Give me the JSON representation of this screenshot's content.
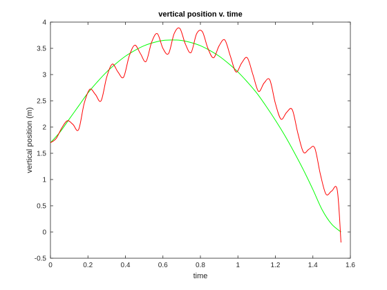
{
  "chart_data": {
    "type": "line",
    "title": "vertical position v. time",
    "xlabel": "time",
    "ylabel": "vertical position (m)",
    "xlim": [
      0,
      1.6
    ],
    "ylim": [
      -0.5,
      4
    ],
    "xticks": [
      "0",
      "0.2",
      "0.4",
      "0.6",
      "0.8",
      "1",
      "1.2",
      "1.4",
      "1.6"
    ],
    "yticks": [
      "-0.5",
      "0",
      "0.5",
      "1",
      "1.5",
      "2",
      "2.5",
      "3",
      "3.5",
      "4"
    ],
    "grid": false,
    "legend": "none",
    "series": [
      {
        "color": "#00ff00",
        "x": [
          0,
          0.05,
          0.1,
          0.15,
          0.2,
          0.25,
          0.3,
          0.35,
          0.4,
          0.45,
          0.5,
          0.55,
          0.6,
          0.65,
          0.7,
          0.75,
          0.8,
          0.85,
          0.9,
          0.95,
          1.0,
          1.05,
          1.1,
          1.15,
          1.2,
          1.25,
          1.3,
          1.35,
          1.4,
          1.45,
          1.5,
          1.55
        ],
        "y": [
          1.7,
          1.9,
          2.15,
          2.4,
          2.65,
          2.86,
          3.05,
          3.21,
          3.35,
          3.46,
          3.55,
          3.61,
          3.65,
          3.66,
          3.65,
          3.61,
          3.55,
          3.46,
          3.35,
          3.21,
          3.05,
          2.86,
          2.65,
          2.4,
          2.13,
          1.84,
          1.52,
          1.18,
          0.81,
          0.42,
          0.15,
          0.0
        ]
      },
      {
        "color": "#ff0000",
        "x": [
          0,
          0.03,
          0.06,
          0.09,
          0.12,
          0.15,
          0.18,
          0.21,
          0.24,
          0.27,
          0.3,
          0.33,
          0.36,
          0.39,
          0.42,
          0.45,
          0.48,
          0.51,
          0.54,
          0.57,
          0.6,
          0.63,
          0.66,
          0.69,
          0.72,
          0.75,
          0.78,
          0.81,
          0.84,
          0.87,
          0.9,
          0.93,
          0.96,
          0.99,
          1.02,
          1.05,
          1.08,
          1.11,
          1.14,
          1.17,
          1.2,
          1.23,
          1.26,
          1.29,
          1.32,
          1.35,
          1.38,
          1.41,
          1.44,
          1.47,
          1.5,
          1.53,
          1.55
        ],
        "y": [
          1.7,
          1.78,
          1.98,
          2.12,
          2.05,
          1.95,
          2.45,
          2.72,
          2.62,
          2.5,
          2.95,
          3.2,
          3.05,
          2.95,
          3.35,
          3.56,
          3.4,
          3.25,
          3.62,
          3.78,
          3.5,
          3.4,
          3.78,
          3.88,
          3.58,
          3.42,
          3.78,
          3.82,
          3.5,
          3.32,
          3.55,
          3.66,
          3.35,
          3.05,
          3.22,
          3.32,
          3.0,
          2.68,
          2.84,
          2.9,
          2.45,
          2.15,
          2.28,
          2.33,
          1.88,
          1.52,
          1.58,
          1.6,
          1.1,
          0.72,
          0.78,
          0.8,
          -0.2
        ]
      }
    ]
  }
}
